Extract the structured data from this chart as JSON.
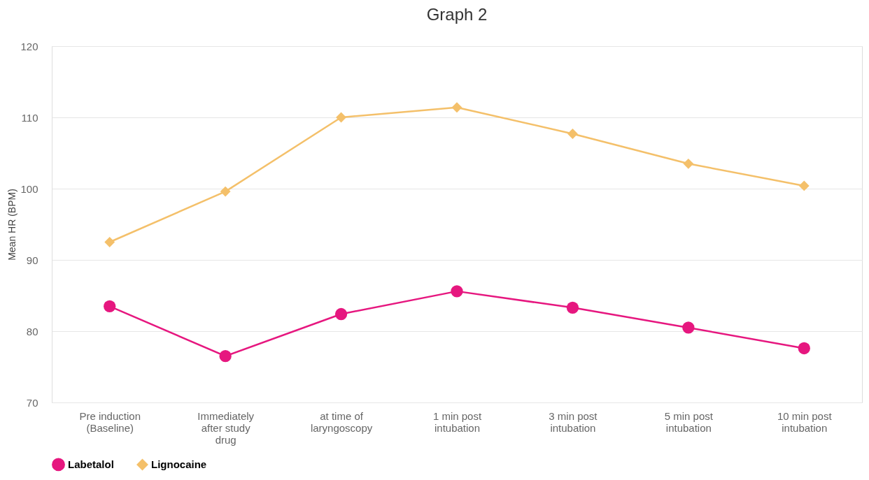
{
  "chart_data": {
    "type": "line",
    "title": "Graph 2",
    "ylabel": "Mean HR (BPM)",
    "categories": [
      "Pre induction (Baseline)",
      "Immediately after study drug",
      "at time of laryngoscopy",
      "1 min post intubation",
      "3 min post intubation",
      "5 min post intubation",
      "10 min post intubation"
    ],
    "series": [
      {
        "name": "Labetalol",
        "color": "#e6177f",
        "marker": "circle",
        "values": [
          83.5,
          76.5,
          82.4,
          85.6,
          83.3,
          80.5,
          77.6
        ]
      },
      {
        "name": "Lignocaine",
        "color": "#f4c06a",
        "marker": "diamond",
        "values": [
          92.5,
          99.6,
          110.0,
          111.4,
          107.7,
          103.5,
          100.4
        ]
      }
    ],
    "ylim": [
      70,
      120
    ],
    "yticks": [
      70,
      80,
      90,
      100,
      110,
      120
    ],
    "grid": "y",
    "legend": "bottom",
    "line_style": "solid"
  }
}
